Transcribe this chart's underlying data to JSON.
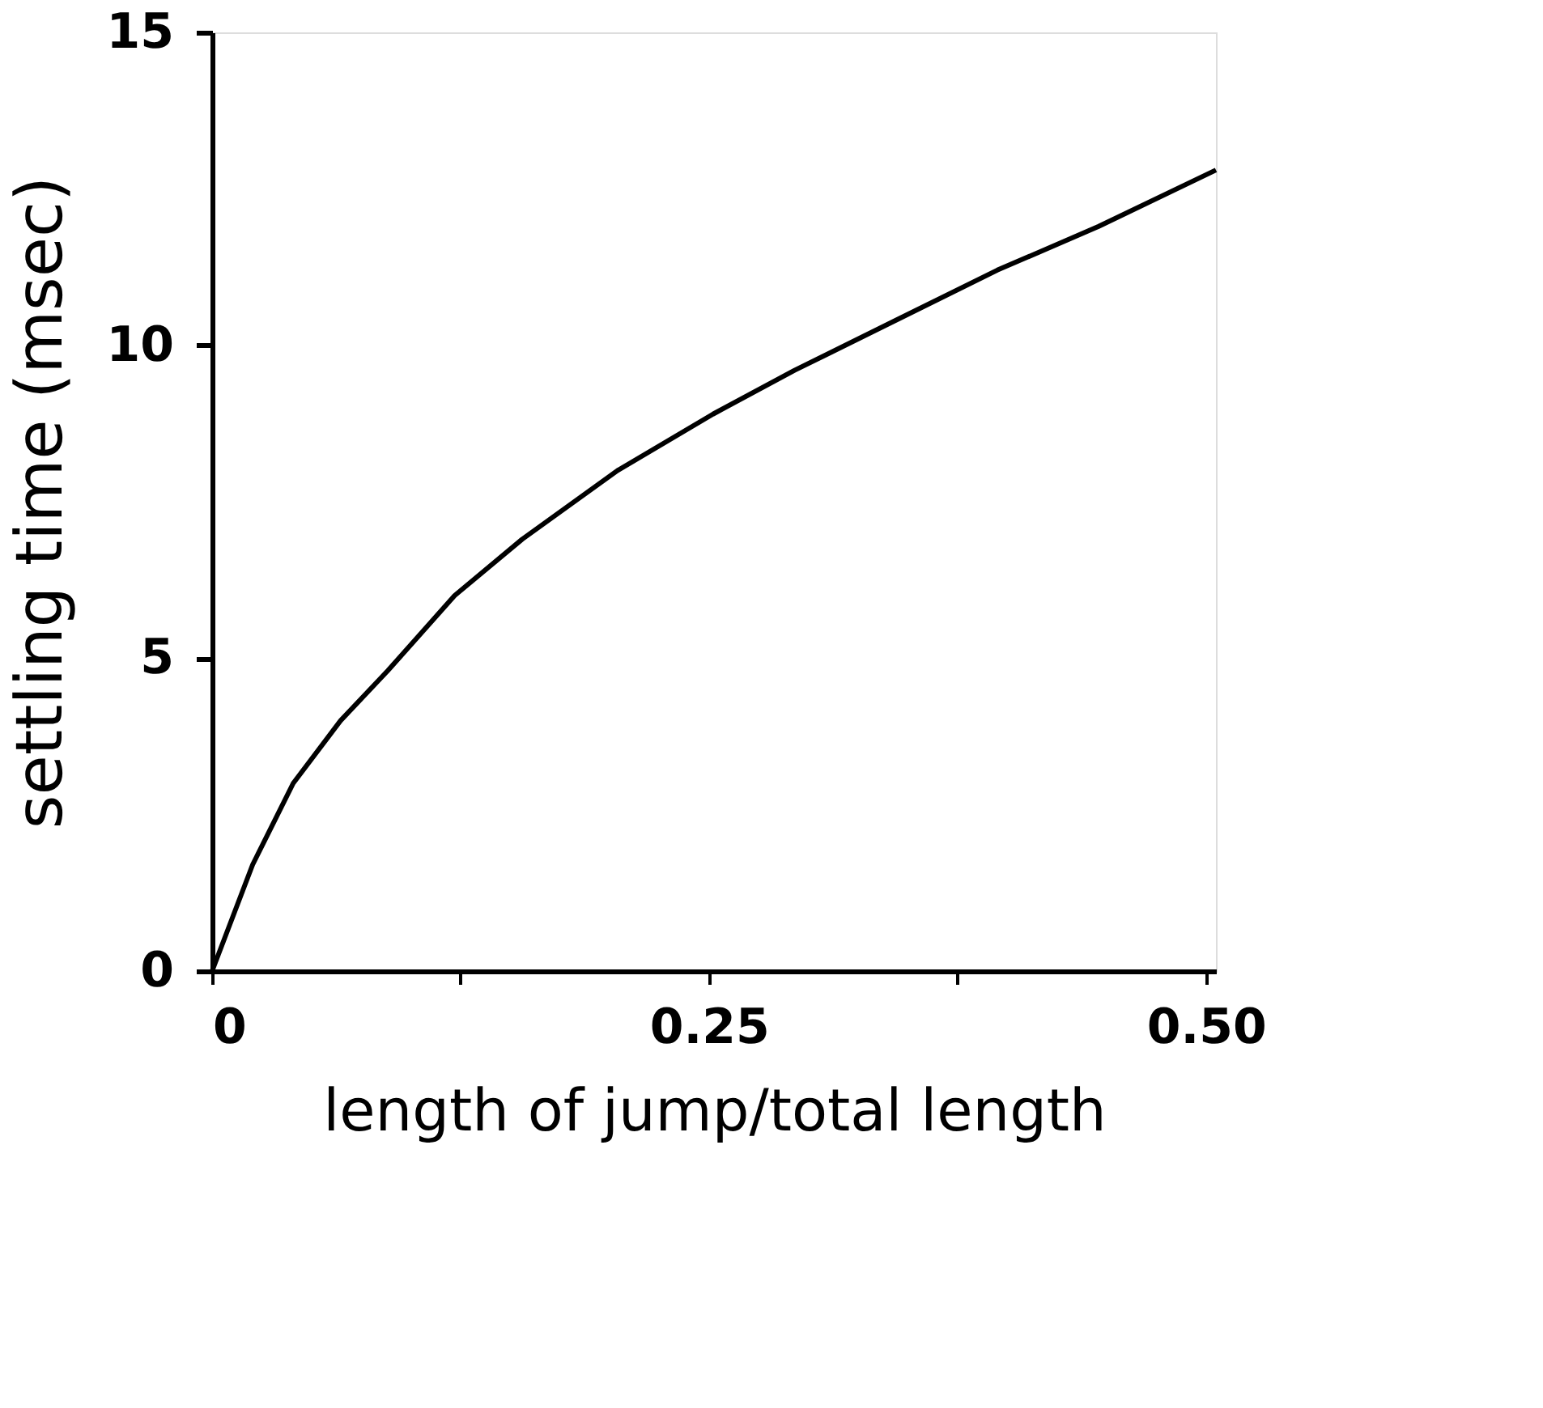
{
  "chart_data": {
    "type": "line",
    "xlabel": "length of jump/total length",
    "ylabel": "settling time (msec)",
    "x": [
      0,
      0.0204,
      0.0408,
      0.0646,
      0.0884,
      0.122,
      0.156,
      0.204,
      0.252,
      0.293,
      0.344,
      0.395,
      0.446,
      0.505
    ],
    "series": [
      {
        "color": "#000000",
        "values": [
          0,
          1.7,
          3.0,
          4.0,
          4.8,
          6.0,
          6.9,
          8.0,
          8.9,
          9.6,
          10.4,
          11.2,
          11.9,
          12.8
        ]
      }
    ],
    "xlim": [
      0,
      0.505
    ],
    "ylim": [
      0,
      15
    ],
    "xticks": [
      0,
      {
        "value": 0.125,
        "label": null
      },
      0.25,
      {
        "value": 0.375,
        "label": null
      },
      {
        "value": 0.5,
        "label": "0.50"
      }
    ],
    "yticks": [
      0,
      5,
      10,
      15
    ],
    "grid": false,
    "legend": false,
    "marker": "none",
    "line_style": "solid"
  }
}
